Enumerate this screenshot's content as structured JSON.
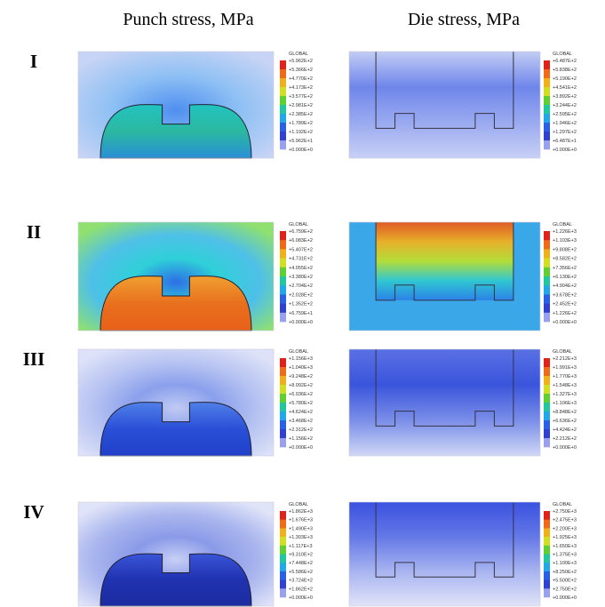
{
  "header": {
    "columns": [
      "Punch stress, MPa",
      "Die stress, MPa"
    ]
  },
  "rows": [
    {
      "label": "I",
      "panels": [
        {
          "legend": {
            "title": "GLOBAL",
            "labels": [
              "+5.962E+2",
              "+5.366E+2",
              "+4.770E+2",
              "+4.173E+2",
              "+3.577E+2",
              "+2.981E+2",
              "+2.385E+2",
              "+1.789E+2",
              "+1.192E+2",
              "+5.962E+1",
              "+0.000E+0"
            ]
          }
        },
        {
          "legend": {
            "title": "GLOBAL",
            "labels": [
              "+6.487E+2",
              "+5.838E+2",
              "+5.190E+2",
              "+4.541E+2",
              "+3.892E+2",
              "+3.244E+2",
              "+2.595E+2",
              "+1.946E+2",
              "+1.297E+2",
              "+6.487E+1",
              "+0.000E+0"
            ]
          }
        }
      ]
    },
    {
      "label": "II",
      "panels": [
        {
          "legend": {
            "title": "GLOBAL",
            "labels": [
              "+6.759E+2",
              "+6.083E+2",
              "+5.407E+2",
              "+4.731E+2",
              "+4.055E+2",
              "+3.380E+2",
              "+2.704E+2",
              "+2.028E+2",
              "+1.352E+2",
              "+6.759E+1",
              "+0.000E+0"
            ]
          }
        },
        {
          "legend": {
            "title": "GLOBAL",
            "labels": [
              "+1.226E+3",
              "+1.103E+3",
              "+9.808E+2",
              "+8.582E+2",
              "+7.356E+2",
              "+6.130E+2",
              "+4.904E+2",
              "+3.678E+2",
              "+2.452E+2",
              "+1.226E+2",
              "+0.000E+0"
            ]
          }
        }
      ]
    },
    {
      "label": "III",
      "panels": [
        {
          "legend": {
            "title": "GLOBAL",
            "labels": [
              "+1.156E+3",
              "+1.040E+3",
              "+9.248E+2",
              "+8.092E+2",
              "+6.936E+2",
              "+5.780E+2",
              "+4.624E+2",
              "+3.468E+2",
              "+2.312E+2",
              "+1.156E+2",
              "+0.000E+0"
            ]
          }
        },
        {
          "legend": {
            "title": "GLOBAL",
            "labels": [
              "+2.212E+3",
              "+1.991E+3",
              "+1.770E+3",
              "+1.548E+3",
              "+1.327E+3",
              "+1.106E+3",
              "+8.848E+2",
              "+6.636E+2",
              "+4.424E+2",
              "+2.212E+2",
              "+0.000E+0"
            ]
          }
        }
      ]
    },
    {
      "label": "IV",
      "panels": [
        {
          "legend": {
            "title": "GLOBAL",
            "labels": [
              "+1.862E+3",
              "+1.676E+3",
              "+1.490E+3",
              "+1.303E+3",
              "+1.117E+3",
              "+9.310E+2",
              "+7.448E+2",
              "+5.586E+2",
              "+3.724E+2",
              "+1.862E+2",
              "+0.000E+0"
            ]
          }
        },
        {
          "legend": {
            "title": "GLOBAL",
            "labels": [
              "+2.750E+3",
              "+2.475E+3",
              "+2.200E+3",
              "+1.925E+3",
              "+1.650E+3",
              "+1.375E+3",
              "+1.100E+3",
              "+8.250E+2",
              "+5.500E+2",
              "+2.750E+2",
              "+0.000E+0"
            ]
          }
        }
      ]
    }
  ]
}
